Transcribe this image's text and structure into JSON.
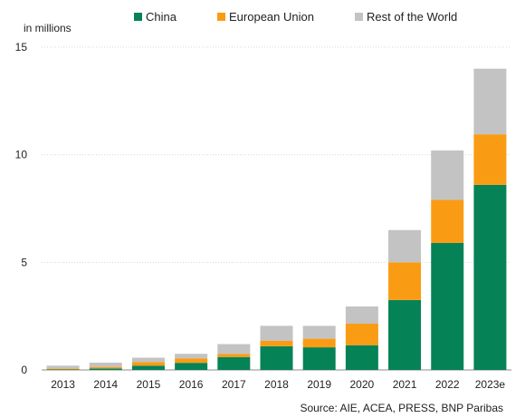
{
  "unit_label": "in millions",
  "source": "Source: AIE, ACEA, PRESS, BNP Paribas",
  "colors": {
    "China": "#068257",
    "European Union": "#f99c14",
    "Rest of the World": "#c3c3c3",
    "grid": "#d9d9d9",
    "axis": "#8c8c8c"
  },
  "legend": [
    {
      "label": "China",
      "color": "#068257"
    },
    {
      "label": "European Union",
      "color": "#f99c14"
    },
    {
      "label": "Rest of the World",
      "color": "#c3c3c3"
    }
  ],
  "chart_data": {
    "type": "bar",
    "stacked": true,
    "title": "",
    "xlabel": "",
    "ylabel": "in millions",
    "ylim": [
      0,
      15
    ],
    "yticks": [
      0,
      5,
      10,
      15
    ],
    "grid": true,
    "legend_position": "top",
    "categories": [
      "2013",
      "2014",
      "2015",
      "2016",
      "2017",
      "2018",
      "2019",
      "2020",
      "2021",
      "2022",
      "2023e"
    ],
    "series": [
      {
        "name": "China",
        "color": "#068257",
        "values": [
          0.02,
          0.07,
          0.2,
          0.33,
          0.6,
          1.1,
          1.05,
          1.15,
          3.25,
          5.9,
          8.6
        ]
      },
      {
        "name": "European Union",
        "color": "#f99c14",
        "values": [
          0.04,
          0.07,
          0.17,
          0.21,
          0.15,
          0.25,
          0.4,
          1.0,
          1.75,
          2.0,
          2.35
        ]
      },
      {
        "name": "Rest of the World",
        "color": "#c3c3c3",
        "values": [
          0.14,
          0.2,
          0.2,
          0.21,
          0.45,
          0.7,
          0.6,
          0.8,
          1.5,
          2.3,
          3.05
        ]
      }
    ]
  }
}
